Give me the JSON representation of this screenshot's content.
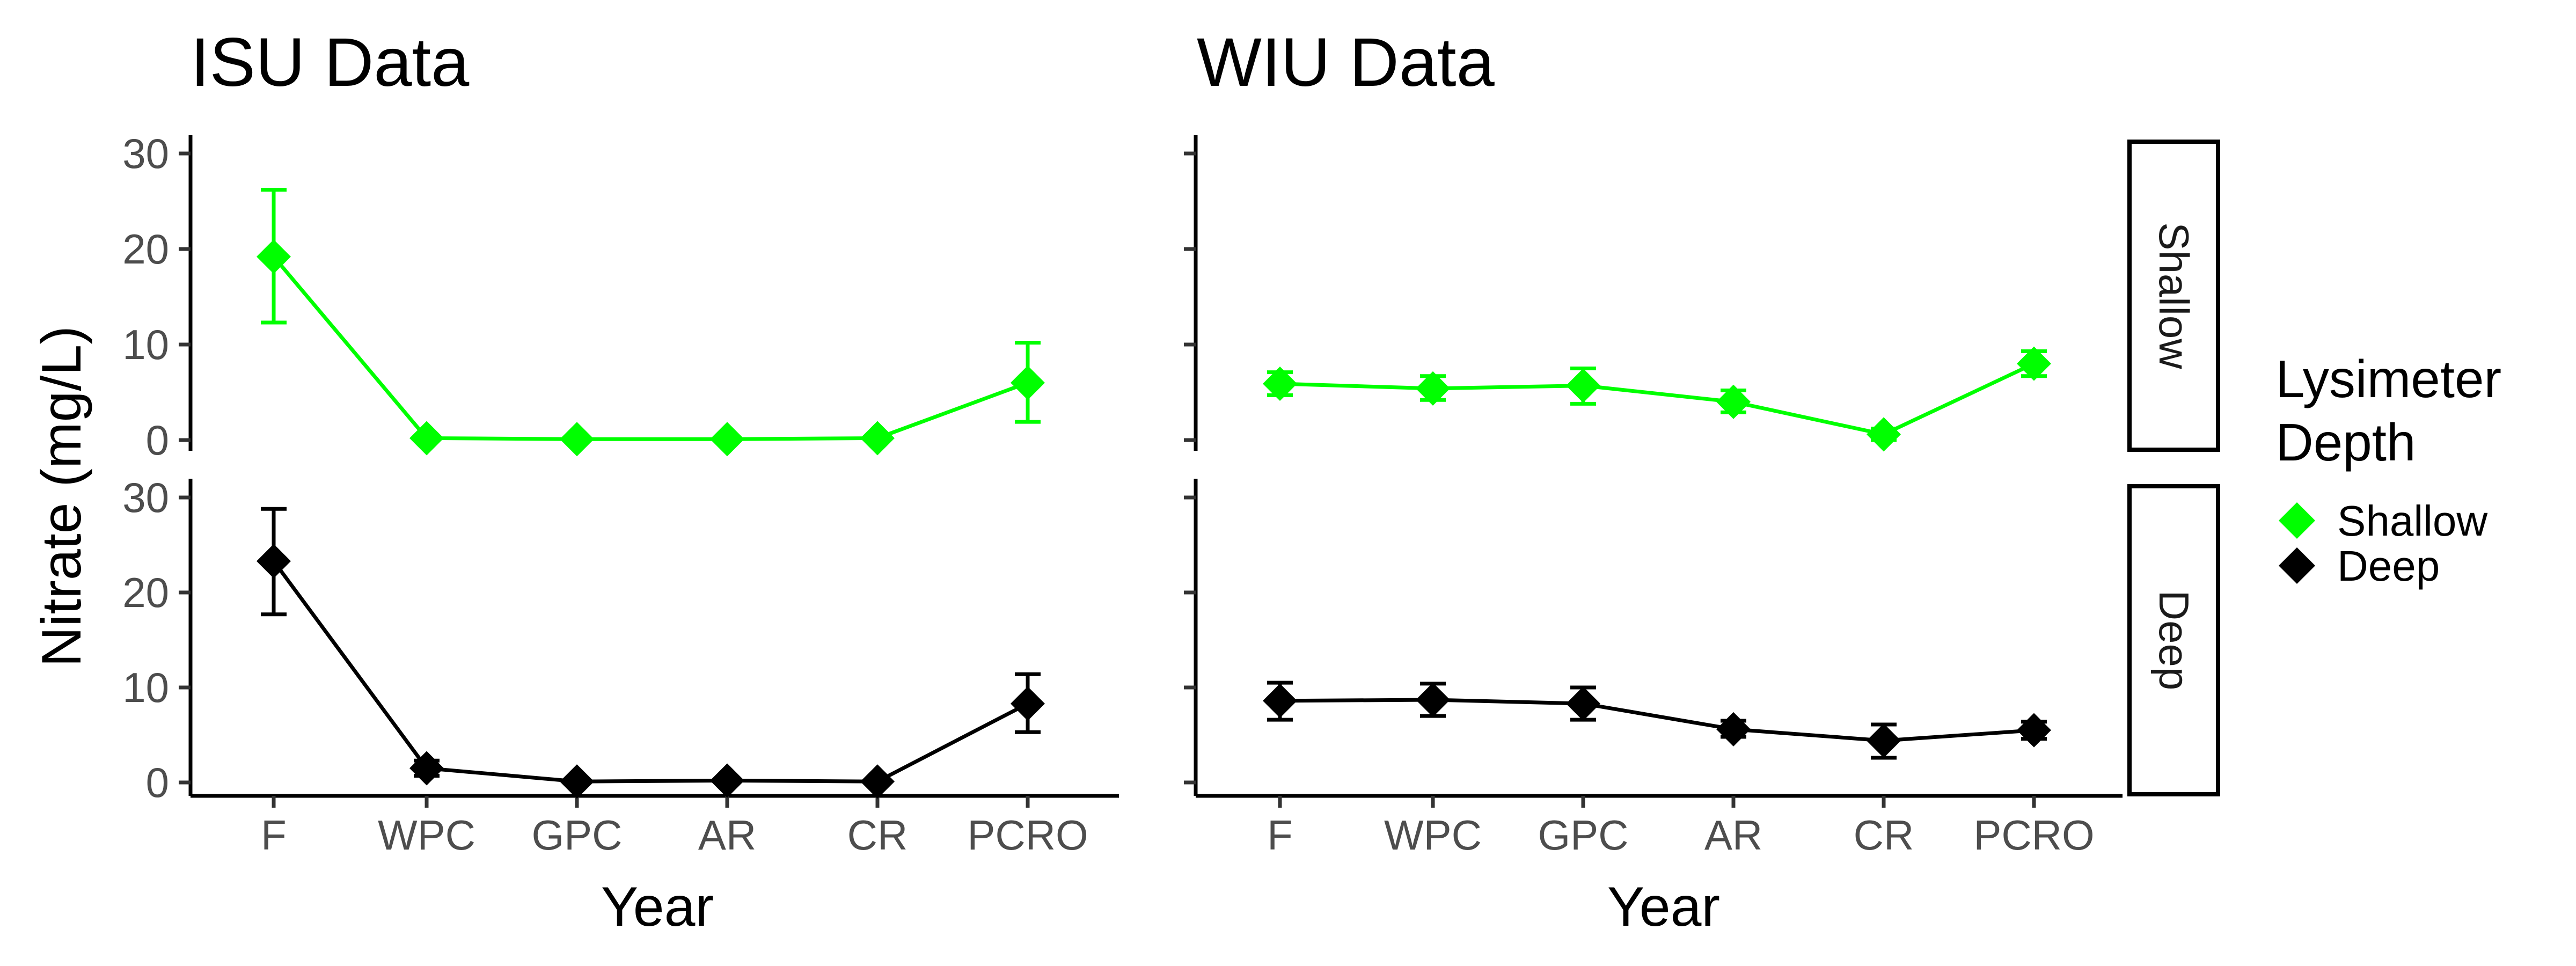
{
  "chart_data": {
    "type": "line",
    "panels": [
      {
        "title": "ISU Data"
      },
      {
        "title": "WIU Data"
      }
    ],
    "facets": [
      "Shallow",
      "Deep"
    ],
    "categories": [
      "F",
      "WPC",
      "GPC",
      "AR",
      "CR",
      "PCRO"
    ],
    "xlabel": "Year",
    "ylabel": "Nitrate (mg/L)",
    "ylim": [
      0,
      30
    ],
    "yticks": [
      "0",
      "10",
      "20",
      "30"
    ],
    "grid": false,
    "legend": {
      "title": "Lysimeter\nDepth",
      "placement": "right",
      "entries": [
        {
          "name": "Shallow",
          "color": "#00ff00"
        },
        {
          "name": "Deep",
          "color": "#000000"
        }
      ]
    },
    "series": [
      {
        "panel": "ISU Data",
        "facet": "Shallow",
        "name": "Shallow",
        "color": "#00ff00",
        "values": [
          19.2,
          0.2,
          0.1,
          0.1,
          0.2,
          6.0
        ],
        "lower": [
          12.3,
          0.0,
          0.0,
          0.0,
          0.0,
          1.9
        ],
        "upper": [
          26.2,
          0.4,
          0.3,
          0.3,
          0.4,
          10.2
        ]
      },
      {
        "panel": "WIU Data",
        "facet": "Shallow",
        "name": "Shallow",
        "color": "#00ff00",
        "values": [
          5.9,
          5.4,
          5.7,
          4.0,
          0.6,
          8.0
        ],
        "lower": [
          4.7,
          4.2,
          3.8,
          2.9,
          0.0,
          6.7
        ],
        "upper": [
          7.1,
          6.7,
          7.5,
          5.2,
          1.2,
          9.3
        ]
      },
      {
        "panel": "ISU Data",
        "facet": "Deep",
        "name": "Deep",
        "color": "#000000",
        "values": [
          23.3,
          1.5,
          0.1,
          0.2,
          0.1,
          8.3
        ],
        "lower": [
          17.7,
          0.7,
          0.0,
          0.0,
          0.0,
          5.3
        ],
        "upper": [
          28.8,
          2.3,
          0.3,
          0.4,
          0.3,
          11.4
        ]
      },
      {
        "panel": "WIU Data",
        "facet": "Deep",
        "name": "Deep",
        "color": "#000000",
        "values": [
          8.6,
          8.7,
          8.3,
          5.6,
          4.4,
          5.5
        ],
        "lower": [
          6.6,
          7.0,
          6.6,
          4.8,
          2.6,
          4.6
        ],
        "upper": [
          10.5,
          10.4,
          10.0,
          6.5,
          6.1,
          6.4
        ]
      }
    ]
  }
}
